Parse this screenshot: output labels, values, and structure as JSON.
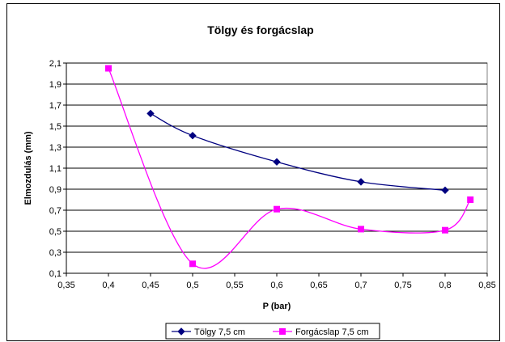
{
  "chart_data": {
    "type": "line",
    "title": "Tölgy és forgácslap",
    "xlabel": "P (bar)",
    "ylabel": "Elmozdulás  (mm)",
    "xlim": [
      0.35,
      0.85
    ],
    "ylim": [
      0.1,
      2.1
    ],
    "x_ticks": [
      "0,35",
      "0,4",
      "0,45",
      "0,5",
      "0,55",
      "0,6",
      "0,65",
      "0,7",
      "0,75",
      "0,8",
      "0,85"
    ],
    "x_tick_values": [
      0.35,
      0.4,
      0.45,
      0.5,
      0.55,
      0.6,
      0.65,
      0.7,
      0.75,
      0.8,
      0.85
    ],
    "y_ticks": [
      "0,1",
      "0,3",
      "0,5",
      "0,7",
      "0,9",
      "1,1",
      "1,3",
      "1,5",
      "1,7",
      "1,9",
      "2,1"
    ],
    "y_tick_values": [
      0.1,
      0.3,
      0.5,
      0.7,
      0.9,
      1.1,
      1.3,
      1.5,
      1.7,
      1.9,
      2.1
    ],
    "grid": "horizontal",
    "legend_position": "bottom",
    "series": [
      {
        "name": "Tölgy 7,5 cm",
        "color": "#000080",
        "marker": "diamond",
        "x": [
          0.45,
          0.5,
          0.6,
          0.7,
          0.8
        ],
        "y": [
          1.62,
          1.41,
          1.16,
          0.97,
          0.89
        ]
      },
      {
        "name": "Forgácslap 7,5 cm",
        "color": "#FF00FF",
        "marker": "square",
        "x": [
          0.4,
          0.5,
          0.6,
          0.7,
          0.8,
          0.83
        ],
        "y": [
          2.05,
          0.19,
          0.71,
          0.52,
          0.51,
          0.8
        ]
      }
    ]
  }
}
